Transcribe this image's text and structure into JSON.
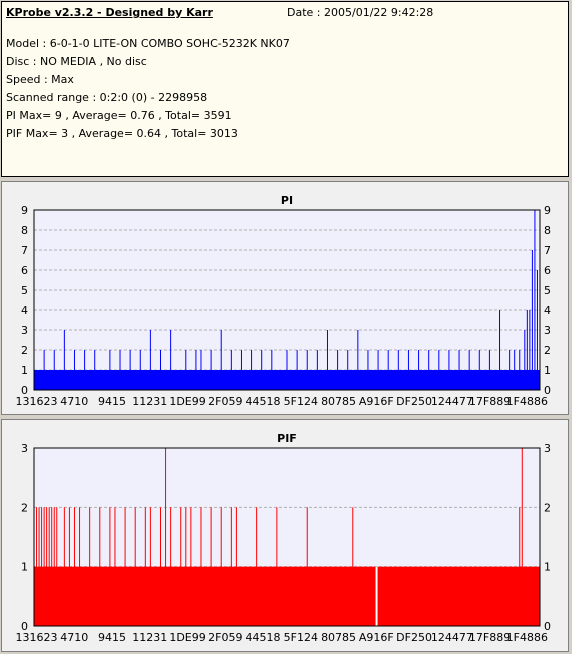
{
  "info": {
    "title": "KProbe v2.3.2 - Designed by Karr",
    "date": "Date : 2005/01/22 9:42:28",
    "lines": [
      "Model : 6-0-1-0 LITE-ON COMBO SOHC-5232K NK07",
      "Disc : NO MEDIA , No disc",
      "Speed : Max",
      "Scanned range : 0:2:0 (0) - 2298958",
      "PI Max= 9 , Average= 0.76 , Total= 3591",
      "PIF Max= 3 , Average= 0.64 , Total= 3013"
    ]
  },
  "colors": {
    "pi": "#0000ff",
    "pif": "#ff0000",
    "plot_bg": "#f0f0fc",
    "grid": "#b0b0b0"
  },
  "chart_data": [
    {
      "type": "bar",
      "title": "PI",
      "ylim": [
        0,
        9
      ],
      "yticks": [
        0,
        1,
        2,
        3,
        4,
        5,
        6,
        7,
        8,
        9
      ],
      "xticks": [
        "131623",
        "4710",
        "9415",
        "11231",
        "1DE99",
        "2F059",
        "44518",
        "5F124",
        "80785",
        "A916F",
        "DF250",
        "124477",
        "17F889",
        "1F4886"
      ],
      "grid": true,
      "baseline": 1,
      "x": [
        0.02,
        0.04,
        0.06,
        0.08,
        0.1,
        0.12,
        0.15,
        0.17,
        0.19,
        0.21,
        0.23,
        0.25,
        0.27,
        0.3,
        0.32,
        0.33,
        0.35,
        0.37,
        0.39,
        0.41,
        0.43,
        0.45,
        0.47,
        0.5,
        0.52,
        0.54,
        0.56,
        0.58,
        0.6,
        0.62,
        0.64,
        0.66,
        0.68,
        0.7,
        0.72,
        0.74,
        0.76,
        0.78,
        0.8,
        0.82,
        0.84,
        0.86,
        0.88,
        0.9,
        0.92,
        0.94,
        0.95,
        0.96,
        0.97,
        0.975,
        0.98,
        0.985,
        0.99,
        0.995
      ],
      "values": [
        2,
        2,
        3,
        2,
        2,
        2,
        2,
        2,
        2,
        2,
        3,
        2,
        3,
        2,
        2,
        2,
        2,
        3,
        2,
        2,
        2,
        2,
        2,
        2,
        2,
        2,
        2,
        3,
        2,
        2,
        3,
        2,
        2,
        2,
        2,
        2,
        2,
        2,
        2,
        2,
        2,
        2,
        2,
        2,
        4,
        2,
        2,
        2,
        3,
        4,
        4,
        7,
        9,
        6
      ]
    },
    {
      "type": "bar",
      "title": "PIF",
      "ylim": [
        0,
        3
      ],
      "yticks": [
        0,
        1,
        2,
        3
      ],
      "xticks": [
        "131623",
        "4710",
        "9415",
        "11231",
        "1DE99",
        "2F059",
        "44518",
        "5F124",
        "80785",
        "A916F",
        "DF250",
        "124477",
        "17F889",
        "1F4886"
      ],
      "grid": true,
      "baseline": 1,
      "gaps": [
        0.675
      ],
      "x": [
        0.005,
        0.01,
        0.015,
        0.02,
        0.025,
        0.03,
        0.035,
        0.04,
        0.045,
        0.06,
        0.07,
        0.08,
        0.09,
        0.11,
        0.13,
        0.15,
        0.16,
        0.18,
        0.2,
        0.22,
        0.23,
        0.25,
        0.26,
        0.27,
        0.29,
        0.3,
        0.31,
        0.33,
        0.35,
        0.37,
        0.39,
        0.4,
        0.44,
        0.48,
        0.54,
        0.63,
        0.96,
        0.965
      ],
      "values": [
        2,
        2,
        2,
        2,
        2,
        2,
        2,
        2,
        2,
        2,
        2,
        2,
        2,
        2,
        2,
        2,
        2,
        2,
        2,
        2,
        2,
        2,
        3,
        2,
        2,
        2,
        2,
        2,
        2,
        2,
        2,
        2,
        2,
        2,
        2,
        2,
        2,
        3
      ]
    }
  ]
}
